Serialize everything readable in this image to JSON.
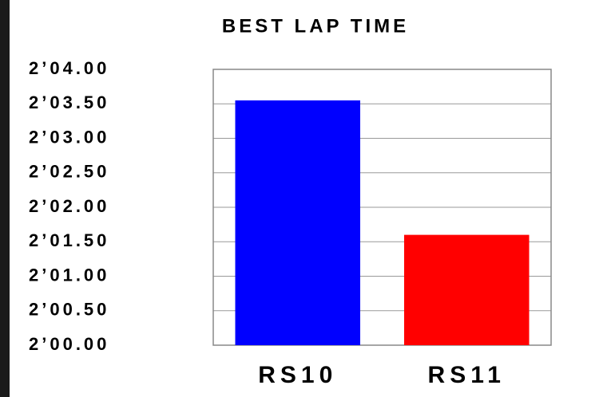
{
  "chart_data": {
    "type": "bar",
    "title": "BEST LAP TIME",
    "categories": [
      "RS10",
      "RS11"
    ],
    "values": [
      123.55,
      121.6
    ],
    "colors": [
      "#0000ff",
      "#ff0000"
    ],
    "ylim": [
      120,
      124
    ],
    "yticks": [
      {
        "value": 120,
        "label": "2’00.00"
      },
      {
        "value": 120.5,
        "label": "2’00.50"
      },
      {
        "value": 121,
        "label": "2’01.00"
      },
      {
        "value": 121.5,
        "label": "2’01.50"
      },
      {
        "value": 122,
        "label": "2’02.00"
      },
      {
        "value": 122.5,
        "label": "2’02.50"
      },
      {
        "value": 123,
        "label": "2’03.00"
      },
      {
        "value": 123.5,
        "label": "2’03.50"
      },
      {
        "value": 124,
        "label": "2’04.00"
      }
    ],
    "grid": true
  }
}
